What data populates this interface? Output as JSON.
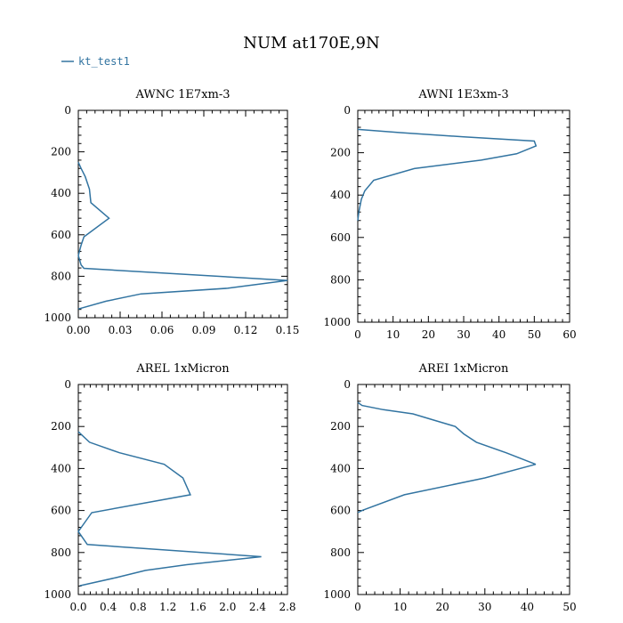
{
  "title": "NUM at170E,9N",
  "legend": {
    "label": "kt_test1",
    "color": "#3274a1"
  },
  "chart_data": [
    {
      "type": "line",
      "title": "AWNC  1E7xm-3",
      "xlim": [
        0,
        0.15
      ],
      "ylim": [
        1000,
        0
      ],
      "xticks": [
        0,
        0.03,
        0.06,
        0.09,
        0.12,
        0.15
      ],
      "xtick_labels": [
        "0.00",
        "0.03",
        "0.06",
        "0.09",
        "0.12",
        "0.15"
      ],
      "yticks": [
        0,
        200,
        400,
        600,
        800,
        1000
      ],
      "ytick_labels": [
        "0",
        "200",
        "400",
        "600",
        "800",
        "1000"
      ],
      "series": [
        {
          "name": "kt_test1",
          "points": [
            [
              0.0,
              250
            ],
            [
              0.002,
              280
            ],
            [
              0.005,
              320
            ],
            [
              0.008,
              380
            ],
            [
              0.009,
              445
            ],
            [
              0.022,
              520
            ],
            [
              0.004,
              610
            ],
            [
              0.002,
              650
            ],
            [
              0.0,
              700
            ],
            [
              0.002,
              745
            ],
            [
              0.004,
              762
            ],
            [
              0.15,
              820
            ],
            [
              0.107,
              858
            ],
            [
              0.045,
              885
            ],
            [
              0.02,
              920
            ],
            [
              0.0,
              958
            ]
          ]
        }
      ]
    },
    {
      "type": "line",
      "title": "AWNI  1E3xm-3",
      "xlim": [
        0,
        60
      ],
      "ylim": [
        1000,
        0
      ],
      "xticks": [
        0,
        10,
        20,
        30,
        40,
        50,
        60
      ],
      "xtick_labels": [
        "0",
        "10",
        "20",
        "30",
        "40",
        "50",
        "60"
      ],
      "yticks": [
        0,
        200,
        400,
        600,
        800,
        1000
      ],
      "ytick_labels": [
        "0",
        "200",
        "400",
        "600",
        "800",
        "1000"
      ],
      "series": [
        {
          "name": "kt_test1",
          "points": [
            [
              0.0,
              90
            ],
            [
              12.0,
              105
            ],
            [
              30.0,
              125
            ],
            [
              50.0,
              145
            ],
            [
              50.5,
              168
            ],
            [
              45.0,
              205
            ],
            [
              35.0,
              235
            ],
            [
              16.0,
              275
            ],
            [
              4.5,
              330
            ],
            [
              2.0,
              380
            ],
            [
              1.0,
              420
            ],
            [
              0.3,
              480
            ],
            [
              0.0,
              520
            ]
          ]
        }
      ]
    },
    {
      "type": "line",
      "title": "AREL  1xMicron",
      "xlim": [
        0,
        2.8
      ],
      "ylim": [
        1000,
        0
      ],
      "xticks": [
        0,
        0.4,
        0.8,
        1.2,
        1.6,
        2.0,
        2.4,
        2.8
      ],
      "xtick_labels": [
        "0.0",
        "0.4",
        "0.8",
        "1.2",
        "1.6",
        "2.0",
        "2.4",
        "2.8"
      ],
      "yticks": [
        0,
        200,
        400,
        600,
        800,
        1000
      ],
      "ytick_labels": [
        "0",
        "200",
        "400",
        "600",
        "800",
        "1000"
      ],
      "series": [
        {
          "name": "kt_test1",
          "points": [
            [
              0.0,
              225
            ],
            [
              0.15,
              275
            ],
            [
              0.55,
              325
            ],
            [
              1.15,
              380
            ],
            [
              1.4,
              445
            ],
            [
              1.5,
              525
            ],
            [
              0.18,
              610
            ],
            [
              0.0,
              700
            ],
            [
              0.12,
              762
            ],
            [
              2.45,
              820
            ],
            [
              1.45,
              858
            ],
            [
              0.9,
              885
            ],
            [
              0.5,
              920
            ],
            [
              0.02,
              958
            ]
          ]
        }
      ]
    },
    {
      "type": "line",
      "title": "AREI  1xMicron",
      "xlim": [
        0,
        50
      ],
      "ylim": [
        1000,
        0
      ],
      "xticks": [
        0,
        10,
        20,
        30,
        40,
        50
      ],
      "xtick_labels": [
        "0",
        "10",
        "20",
        "30",
        "40",
        "50"
      ],
      "yticks": [
        0,
        200,
        400,
        600,
        800,
        1000
      ],
      "ytick_labels": [
        "0",
        "200",
        "400",
        "600",
        "800",
        "1000"
      ],
      "series": [
        {
          "name": "kt_test1",
          "points": [
            [
              0.0,
              85
            ],
            [
              1.0,
              100
            ],
            [
              6.0,
              120
            ],
            [
              13.0,
              140
            ],
            [
              18.0,
              170
            ],
            [
              23.0,
              200
            ],
            [
              25.0,
              235
            ],
            [
              28.0,
              275
            ],
            [
              35.0,
              325
            ],
            [
              42.0,
              380
            ],
            [
              30.0,
              445
            ],
            [
              11.0,
              525
            ],
            [
              1.0,
              600
            ],
            [
              0.0,
              610
            ]
          ]
        }
      ]
    }
  ]
}
